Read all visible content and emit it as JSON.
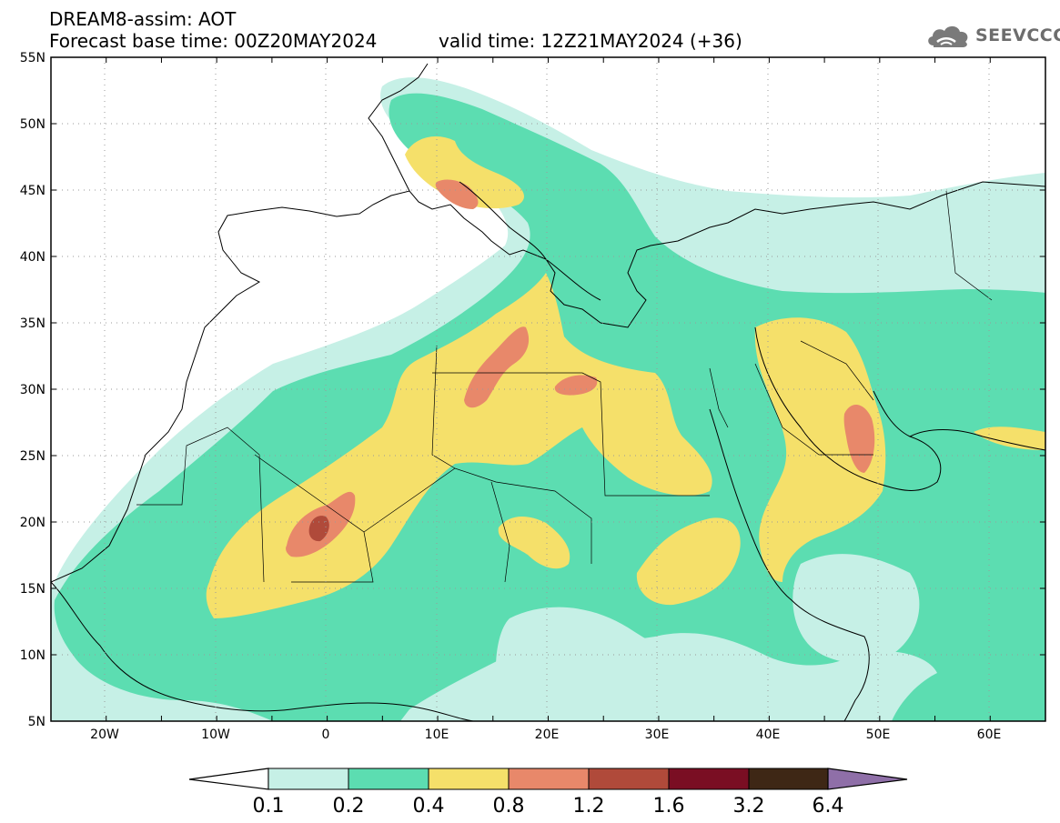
{
  "header": {
    "title_line1": "DREAM8-assim: AOT",
    "title_line2": "Forecast base time: 00Z20MAY2024",
    "valid_time": "valid time: 12Z21MAY2024 (+36)",
    "logo_text": "SEEVCCC"
  },
  "map": {
    "lon_range": [
      -25,
      65
    ],
    "lat_range": [
      5,
      55
    ],
    "lon_ticks": [
      "20W",
      "10W",
      "0",
      "10E",
      "20E",
      "30E",
      "40E",
      "50E",
      "60E"
    ],
    "lat_ticks": [
      "55N",
      "50N",
      "45N",
      "40N",
      "35N",
      "30N",
      "25N",
      "20N",
      "15N",
      "10N",
      "5N"
    ],
    "grid": "dotted"
  },
  "colorbar": {
    "labels": [
      "0.1",
      "0.2",
      "0.4",
      "0.8",
      "1.2",
      "1.6",
      "3.2",
      "6.4"
    ],
    "colors": [
      "#ffffff",
      "#c6f0e6",
      "#5cddb1",
      "#f5e06a",
      "#e8886a",
      "#b04a3a",
      "#7a0e23",
      "#3e2715",
      "#8f6fa8"
    ]
  },
  "palette": {
    "ocean": "#ffffff",
    "lvl_01": "#c6f0e6",
    "lvl_02": "#5cddb1",
    "lvl_04": "#f5e06a",
    "lvl_08": "#e8886a",
    "lvl_12": "#b04a3a",
    "lvl_16": "#7a0e23"
  }
}
